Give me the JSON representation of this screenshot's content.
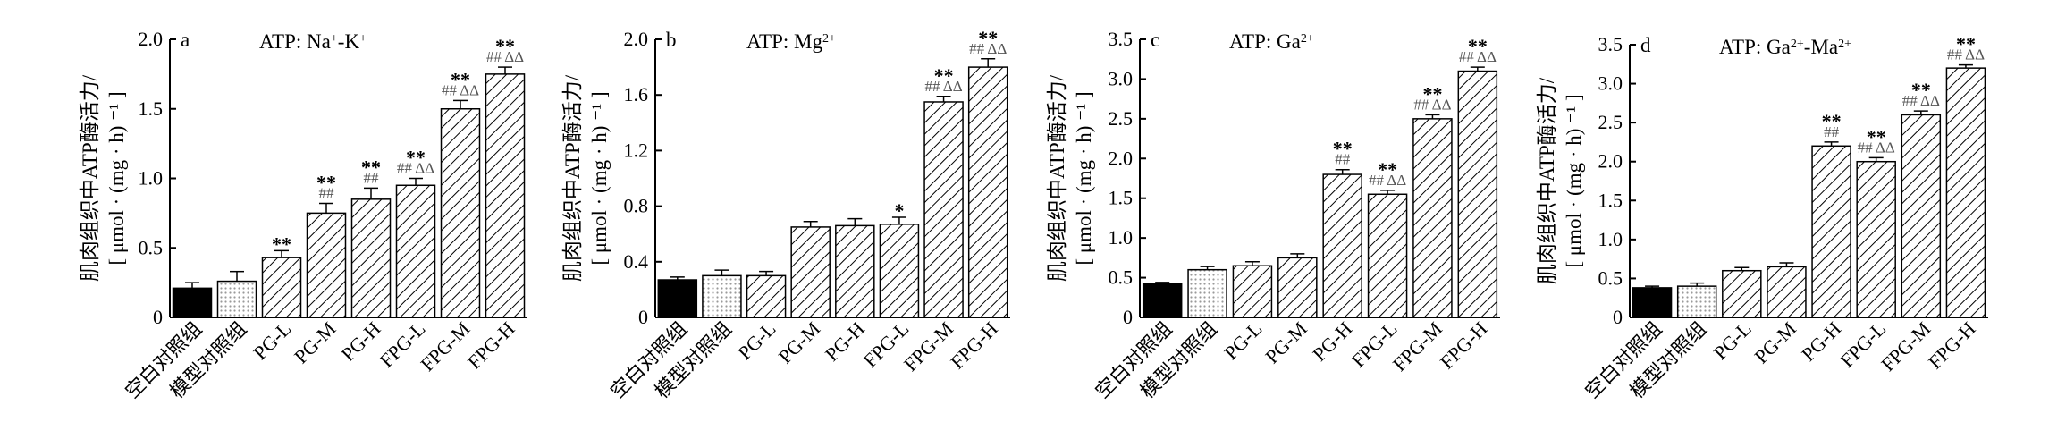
{
  "chart_data": [
    {
      "type": "bar",
      "panel": "a",
      "title_base": "ATP: Na",
      "title_sup1": "+",
      "title_mid": "-K",
      "title_sup2": "+",
      "ylabel": "肌肉组织中ATP酶活力/",
      "ylabel2": "[ μmol · (mg · h) ⁻¹ ]",
      "categories": [
        "空白对照组",
        "模型对照组",
        "PG-L",
        "PG-M",
        "PG-H",
        "FPG-L",
        "FPG-M",
        "FPG-H"
      ],
      "values": [
        0.21,
        0.26,
        0.43,
        0.75,
        0.85,
        0.95,
        1.5,
        1.75
      ],
      "errors": [
        0.04,
        0.07,
        0.05,
        0.07,
        0.08,
        0.05,
        0.06,
        0.05
      ],
      "ylim": [
        0,
        2.0
      ],
      "yticks": [
        "0",
        "0.5",
        "1.0",
        "1.5",
        "2.0"
      ],
      "significance": [
        {
          "stars": "",
          "hash": ""
        },
        {
          "stars": "",
          "hash": ""
        },
        {
          "stars": "**",
          "hash": ""
        },
        {
          "stars": "**",
          "hash": "##"
        },
        {
          "stars": "**",
          "hash": "##"
        },
        {
          "stars": "**",
          "hash": "## ΔΔ"
        },
        {
          "stars": "**",
          "hash": "## ΔΔ"
        },
        {
          "stars": "**",
          "hash": "## ΔΔ"
        }
      ]
    },
    {
      "type": "bar",
      "panel": "b",
      "title_base": "ATP: Mg",
      "title_sup1": "2+",
      "title_mid": "",
      "title_sup2": "",
      "ylabel": "肌肉组织中ATP酶活力/",
      "ylabel2": "[ μmol · (mg · h) ⁻¹ ]",
      "categories": [
        "空白对照组",
        "模型对照组",
        "PG-L",
        "PG-M",
        "PG-H",
        "FPG-L",
        "FPG-M",
        "FPG-H"
      ],
      "values": [
        0.27,
        0.3,
        0.3,
        0.65,
        0.66,
        0.67,
        1.55,
        1.8
      ],
      "errors": [
        0.02,
        0.04,
        0.03,
        0.04,
        0.05,
        0.05,
        0.04,
        0.06
      ],
      "ylim": [
        0,
        2.0
      ],
      "yticks": [
        "0",
        "0.4",
        "0.8",
        "1.2",
        "1.6",
        "2.0"
      ],
      "significance": [
        {
          "stars": "",
          "hash": ""
        },
        {
          "stars": "",
          "hash": ""
        },
        {
          "stars": "",
          "hash": ""
        },
        {
          "stars": "",
          "hash": ""
        },
        {
          "stars": "",
          "hash": ""
        },
        {
          "stars": "*",
          "hash": ""
        },
        {
          "stars": "**",
          "hash": "## ΔΔ"
        },
        {
          "stars": "**",
          "hash": "## ΔΔ"
        }
      ]
    },
    {
      "type": "bar",
      "panel": "c",
      "title_base": "ATP: Ga",
      "title_sup1": "2+",
      "title_mid": "",
      "title_sup2": "",
      "ylabel": "肌肉组织中ATP酶活力/",
      "ylabel2": "[ μmol · (mg · h) ⁻¹ ]",
      "categories": [
        "空白对照组",
        "模型对照组",
        "PG-L",
        "PG-M",
        "PG-H",
        "FPG-L",
        "FPG-M",
        "FPG-H"
      ],
      "values": [
        0.42,
        0.6,
        0.65,
        0.75,
        1.8,
        1.55,
        2.5,
        3.1
      ],
      "errors": [
        0.02,
        0.04,
        0.05,
        0.05,
        0.06,
        0.05,
        0.05,
        0.05
      ],
      "ylim": [
        0,
        3.5
      ],
      "yticks": [
        "0",
        "0.5",
        "1.0",
        "1.5",
        "2.0",
        "2.5",
        "3.0",
        "3.5"
      ],
      "significance": [
        {
          "stars": "",
          "hash": ""
        },
        {
          "stars": "",
          "hash": ""
        },
        {
          "stars": "",
          "hash": ""
        },
        {
          "stars": "",
          "hash": ""
        },
        {
          "stars": "**",
          "hash": "##"
        },
        {
          "stars": "**",
          "hash": "## ΔΔ"
        },
        {
          "stars": "**",
          "hash": "## ΔΔ"
        },
        {
          "stars": "**",
          "hash": "## ΔΔ"
        }
      ]
    },
    {
      "type": "bar",
      "panel": "d",
      "title_base": "ATP: Ga",
      "title_sup1": "2+",
      "title_mid": "-Ma",
      "title_sup2": "2+",
      "ylabel": "肌肉组织中ATP酶活力/",
      "ylabel2": "[ μmol · (mg · h) ⁻¹ ]",
      "categories": [
        "空白对照组",
        "模型对照组",
        "PG-L",
        "PG-M",
        "PG-H",
        "FPG-L",
        "FPG-M",
        "FPG-H"
      ],
      "values": [
        0.38,
        0.4,
        0.6,
        0.65,
        2.2,
        2.0,
        2.6,
        3.2
      ],
      "errors": [
        0.02,
        0.04,
        0.04,
        0.05,
        0.05,
        0.05,
        0.05,
        0.04
      ],
      "ylim": [
        0,
        3.5
      ],
      "yticks": [
        "0",
        "0.5",
        "1.0",
        "1.5",
        "2.0",
        "2.5",
        "3.0",
        "3.5"
      ],
      "significance": [
        {
          "stars": "",
          "hash": ""
        },
        {
          "stars": "",
          "hash": ""
        },
        {
          "stars": "",
          "hash": ""
        },
        {
          "stars": "",
          "hash": ""
        },
        {
          "stars": "**",
          "hash": "##"
        },
        {
          "stars": "**",
          "hash": "## ΔΔ"
        },
        {
          "stars": "**",
          "hash": "## ΔΔ"
        },
        {
          "stars": "**",
          "hash": "## ΔΔ"
        }
      ]
    }
  ]
}
